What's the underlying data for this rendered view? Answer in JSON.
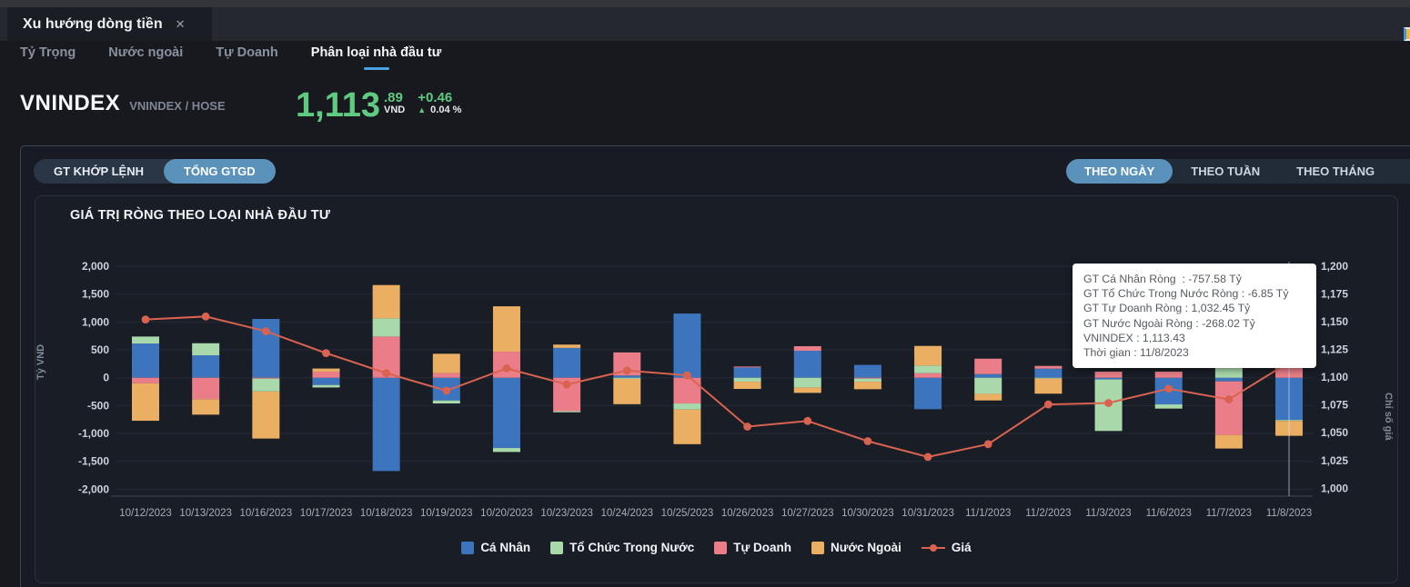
{
  "window": {
    "tab_title": "Xu hướng dòng tiền",
    "close_icon": "✕"
  },
  "nav": {
    "items": [
      {
        "label": "Tỷ Trọng",
        "active": false
      },
      {
        "label": "Nước ngoài",
        "active": false
      },
      {
        "label": "Tự Doanh",
        "active": false
      },
      {
        "label": "Phân loại nhà đầu tư",
        "active": true
      }
    ]
  },
  "instrument": {
    "name": "VNINDEX",
    "code": "VNINDEX / HOSE",
    "price_int": "1,113",
    "price_dec": ".89",
    "currency": "VND",
    "change": "+0.46",
    "up_arrow": "▲",
    "change_pct": "0.04 %",
    "up_color": "#5ecb81"
  },
  "toolbar": {
    "left": [
      {
        "label": "GT KHỚP LỆNH",
        "active": false
      },
      {
        "label": "TỔNG GTGD",
        "active": true
      }
    ],
    "right": [
      {
        "label": "THEO NGÀY",
        "active": true
      },
      {
        "label": "THEO TUẦN",
        "active": false
      },
      {
        "label": "THEO THÁNG",
        "active": false
      }
    ],
    "accent_color": "#5b92bb"
  },
  "panel": {
    "title": "GIÁ TRỊ RÒNG THEO LOẠI NHÀ ĐẦU TƯ"
  },
  "tooltip": {
    "lines": [
      "GT Cá Nhân Ròng  : -757.58 Tỷ",
      "GT Tổ Chức Trong Nước Ròng : -6.85 Tỷ",
      "GT Tự Doanh Ròng : 1,032.45 Tỷ",
      "GT Nước Ngoài Ròng : -268.02 Tỷ",
      "VNINDEX : 1,113.43",
      "Thời gian : 11/8/2023"
    ]
  },
  "chart_data": {
    "type": "bar",
    "subtype": "stacked-bar-with-line",
    "title": "GIÁ TRỊ RÒNG THEO LOẠI NHÀ ĐẦU TƯ",
    "categories": [
      "10/12/2023",
      "10/13/2023",
      "10/16/2023",
      "10/17/2023",
      "10/18/2023",
      "10/19/2023",
      "10/20/2023",
      "10/23/2023",
      "10/24/2023",
      "10/25/2023",
      "10/26/2023",
      "10/27/2023",
      "10/30/2023",
      "10/31/2023",
      "11/1/2023",
      "11/2/2023",
      "11/3/2023",
      "11/6/2023",
      "11/7/2023",
      "11/8/2023"
    ],
    "series": [
      {
        "name": "Cá Nhân",
        "color": "#3d74be",
        "values": [
          614,
          402,
          1055,
          -130,
          -1674,
          -408,
          -1261,
          535,
          40,
          1152,
          185,
          484,
          230,
          -565,
          65,
          163,
          -30,
          -478,
          -65,
          -757.58
        ]
      },
      {
        "name": "Tổ Chức Trong Nước",
        "color": "#a9d8ab",
        "values": [
          125,
          217,
          -230,
          -45,
          326,
          -54,
          -71,
          -20,
          -20,
          -110,
          -71,
          -174,
          -55,
          136,
          -289,
          -10,
          -925,
          -76,
          180,
          -6.85
        ]
      },
      {
        "name": "Tự Doanh",
        "color": "#ea7d88",
        "values": [
          -98,
          -386,
          -10,
          110,
          739,
          82,
          467,
          -600,
          415,
          -462,
          16,
          82,
          -10,
          82,
          277,
          49,
          110,
          110,
          -961,
          1032.45
        ]
      },
      {
        "name": "Nước Ngoài",
        "color": "#eaaf62",
        "values": [
          -674,
          -277,
          -845,
          55,
          598,
          348,
          815,
          60,
          -455,
          -620,
          -130,
          -98,
          -135,
          353,
          -119,
          -270,
          0,
          0,
          -244,
          -268.02
        ]
      }
    ],
    "stack_order": [
      0,
      2,
      1,
      3
    ],
    "line": {
      "name": "Giá",
      "color": "#d96350",
      "values": [
        1152.0,
        1154.7,
        1141.4,
        1121.7,
        1103.7,
        1087.9,
        1108.0,
        1093.5,
        1106.0,
        1101.7,
        1055.5,
        1060.6,
        1042.4,
        1028.2,
        1039.7,
        1075.5,
        1076.8,
        1089.7,
        1080.0,
        1113.43
      ]
    },
    "ylabel_left": "Tỷ VND",
    "ylabel_right": "Chỉ số giá",
    "ylim_left": [
      -2000,
      2000
    ],
    "ylim_right": [
      1000,
      1200
    ],
    "yticks_left": {
      "values": [
        2000,
        1500,
        1000,
        500,
        0,
        -500,
        -1000,
        -1500,
        -2000
      ],
      "labels": [
        "2,000",
        "1,500",
        "1,000",
        "500",
        "0",
        "-500",
        "-1,000",
        "-1,500",
        "-2,000"
      ]
    },
    "yticks_right": {
      "values": [
        1200,
        1175,
        1150,
        1125,
        1100,
        1075,
        1050,
        1025,
        1000
      ],
      "labels": [
        "1,200",
        "1,175",
        "1,150",
        "1,125",
        "1,100",
        "1,075",
        "1,050",
        "1,025",
        "1,000"
      ]
    },
    "grid": true,
    "legend_position": "bottom",
    "hover_index": 19
  }
}
